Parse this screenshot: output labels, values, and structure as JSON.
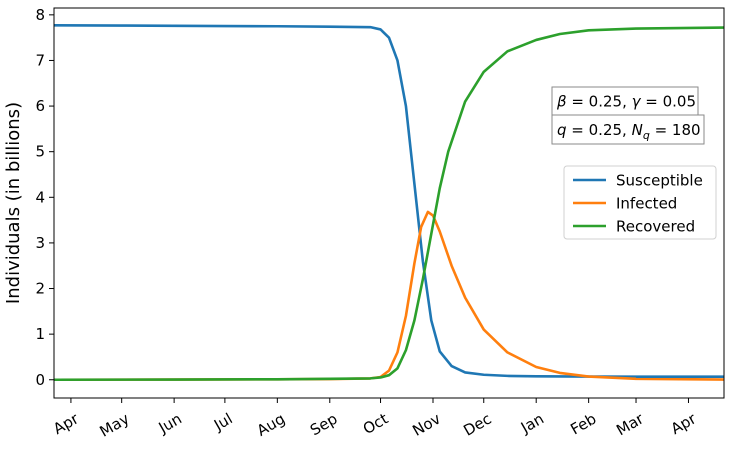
{
  "chart_data": {
    "type": "line",
    "ylabel": "Individuals (in billions)",
    "xlabel": "",
    "x_tick_labels": [
      "Apr",
      "May",
      "Jun",
      "Jul",
      "Aug",
      "Sep",
      "Oct",
      "Nov",
      "Dec",
      "Jan",
      "Feb",
      "Mar",
      "Apr"
    ],
    "x_tick_dates": [
      "2020-04-01",
      "2020-05-01",
      "2020-06-01",
      "2020-07-01",
      "2020-08-01",
      "2020-09-01",
      "2020-10-01",
      "2020-11-01",
      "2020-12-01",
      "2021-01-01",
      "2021-02-01",
      "2021-03-01",
      "2021-04-01"
    ],
    "xlim": [
      "2020-03-22",
      "2021-04-22"
    ],
    "y_ticks": [
      0,
      1,
      2,
      3,
      4,
      5,
      6,
      7,
      8
    ],
    "ylim": [
      -0.4,
      8.15
    ],
    "grid": false,
    "legend": "right",
    "annotations": [
      {
        "text": "β = 0.25, γ = 0.05",
        "position": "right"
      },
      {
        "text": "q = 0.25, N_q = 180",
        "position": "right"
      }
    ],
    "series": [
      {
        "name": "Susceptible",
        "color": "#1f77b4",
        "points": [
          [
            "2020-03-22",
            7.77
          ],
          [
            "2020-05-01",
            7.765
          ],
          [
            "2020-06-01",
            7.76
          ],
          [
            "2020-07-01",
            7.755
          ],
          [
            "2020-08-01",
            7.75
          ],
          [
            "2020-09-01",
            7.74
          ],
          [
            "2020-09-25",
            7.73
          ],
          [
            "2020-10-01",
            7.68
          ],
          [
            "2020-10-06",
            7.5
          ],
          [
            "2020-10-11",
            7.0
          ],
          [
            "2020-10-16",
            6.0
          ],
          [
            "2020-10-21",
            4.3
          ],
          [
            "2020-10-26",
            2.6
          ],
          [
            "2020-10-31",
            1.3
          ],
          [
            "2020-11-05",
            0.62
          ],
          [
            "2020-11-12",
            0.3
          ],
          [
            "2020-11-20",
            0.16
          ],
          [
            "2020-12-01",
            0.11
          ],
          [
            "2020-12-15",
            0.085
          ],
          [
            "2021-01-01",
            0.075
          ],
          [
            "2021-02-01",
            0.07
          ],
          [
            "2021-03-01",
            0.068
          ],
          [
            "2021-04-22",
            0.067
          ]
        ]
      },
      {
        "name": "Infected",
        "color": "#ff7f0e",
        "points": [
          [
            "2020-03-22",
            0.0
          ],
          [
            "2020-06-01",
            0.005
          ],
          [
            "2020-08-01",
            0.01
          ],
          [
            "2020-09-01",
            0.015
          ],
          [
            "2020-09-25",
            0.03
          ],
          [
            "2020-10-01",
            0.06
          ],
          [
            "2020-10-06",
            0.2
          ],
          [
            "2020-10-11",
            0.6
          ],
          [
            "2020-10-16",
            1.4
          ],
          [
            "2020-10-21",
            2.55
          ],
          [
            "2020-10-25",
            3.35
          ],
          [
            "2020-10-29",
            3.68
          ],
          [
            "2020-11-01",
            3.6
          ],
          [
            "2020-11-05",
            3.25
          ],
          [
            "2020-11-12",
            2.5
          ],
          [
            "2020-11-20",
            1.8
          ],
          [
            "2020-12-01",
            1.1
          ],
          [
            "2020-12-15",
            0.6
          ],
          [
            "2021-01-01",
            0.28
          ],
          [
            "2021-01-15",
            0.15
          ],
          [
            "2021-02-01",
            0.07
          ],
          [
            "2021-03-01",
            0.02
          ],
          [
            "2021-04-22",
            0.005
          ]
        ]
      },
      {
        "name": "Recovered",
        "color": "#2ca02c",
        "points": [
          [
            "2020-03-22",
            0.0
          ],
          [
            "2020-06-01",
            0.005
          ],
          [
            "2020-08-01",
            0.01
          ],
          [
            "2020-09-01",
            0.02
          ],
          [
            "2020-09-25",
            0.03
          ],
          [
            "2020-10-01",
            0.05
          ],
          [
            "2020-10-06",
            0.1
          ],
          [
            "2020-10-11",
            0.25
          ],
          [
            "2020-10-16",
            0.65
          ],
          [
            "2020-10-21",
            1.3
          ],
          [
            "2020-10-26",
            2.2
          ],
          [
            "2020-10-31",
            3.2
          ],
          [
            "2020-11-05",
            4.2
          ],
          [
            "2020-11-10",
            5.0
          ],
          [
            "2020-11-20",
            6.1
          ],
          [
            "2020-12-01",
            6.75
          ],
          [
            "2020-12-15",
            7.2
          ],
          [
            "2021-01-01",
            7.45
          ],
          [
            "2021-01-15",
            7.58
          ],
          [
            "2021-02-01",
            7.66
          ],
          [
            "2021-03-01",
            7.7
          ],
          [
            "2021-04-22",
            7.72
          ]
        ]
      }
    ]
  }
}
